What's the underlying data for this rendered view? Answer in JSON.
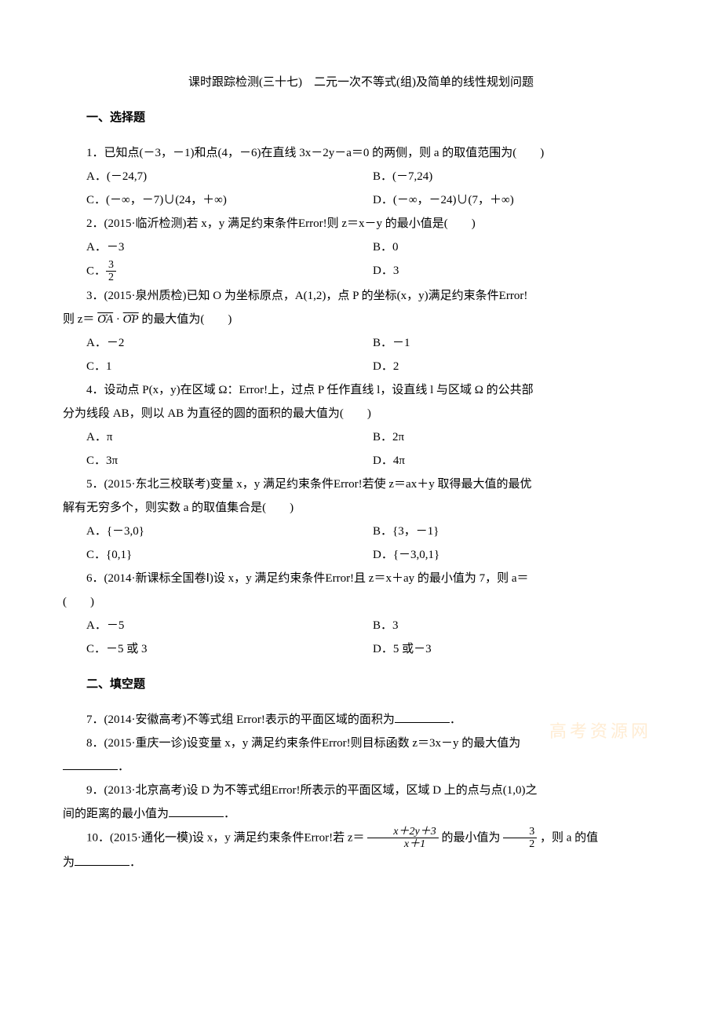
{
  "title": "课时跟踪检测(三十七)　二元一次不等式(组)及简单的线性规划问题",
  "sec1": "一、选择题",
  "q1": "1．已知点(－3，－1)和点(4，－6)在直线 3x－2y－a＝0 的两侧，则 a 的取值范围为(　　)",
  "q1a": "A．(－24,7)",
  "q1b": "B．(－7,24)",
  "q1c": "C．(－∞，－7)∪(24，＋∞)",
  "q1d": "D．(－∞，－24)∪(7，＋∞)",
  "q2": "2．(2015·临沂检测)若 x，y 满足约束条件Error!则 z＝x－y 的最小值是(　　)",
  "q2a": "A．－3",
  "q2b": "B．0",
  "q2cPre": "C．",
  "q2cNum": "3",
  "q2cDen": "2",
  "q2d": "D．3",
  "q3p1": "3．(2015·泉州质检)已知 O 为坐标原点，A(1,2)，点 P 的坐标(x，y)满足约束条件Error!",
  "q3p2_a": "则 z＝",
  "q3p2_b": " 的最大值为(　　)",
  "q3oa": "OA",
  "q3op": "OP",
  "q3a": "A．－2",
  "q3b": "B．－1",
  "q3c": "C．1",
  "q3d": "D．2",
  "q4p1": "4．设动点 P(x，y)在区域 Ω：Error!上，过点 P 任作直线 l，设直线 l 与区域 Ω 的公共部",
  "q4p2": "分为线段 AB，则以 AB 为直径的圆的面积的最大值为(　　)",
  "q4a": "A．π",
  "q4b": "B．2π",
  "q4c": "C．3π",
  "q4d": "D．4π",
  "q5p1": "5．(2015·东北三校联考)变量 x，y 满足约束条件Error!若使 z＝ax＋y 取得最大值的最优",
  "q5p2": "解有无穷多个，则实数 a 的取值集合是(　　)",
  "q5a": "A．{－3,0}",
  "q5b": "B．{3，－1}",
  "q5c": "C．{0,1}",
  "q5d": "D．{－3,0,1}",
  "q6p1": "6．(2014·新课标全国卷Ⅰ)设 x，y 满足约束条件Error!且 z＝x＋ay 的最小值为 7，则 a＝",
  "q6p2": "(　　)",
  "q6a": "A．－5",
  "q6b": "B．3",
  "q6c": "C．－5 或 3",
  "q6d": "D．5 或－3",
  "sec2": "二、填空题",
  "q7a": "7．(2014·安徽高考)不等式组 Error!表示的平面区域的面积为",
  "q7b": "．",
  "q8a": "8．(2015·重庆一诊)设变量 x，y 满足约束条件Error!则目标函数 z＝3x－y 的最大值为",
  "q8b": "．",
  "q9p1": "9．(2013·北京高考)设 D 为不等式组Error!所表示的平面区域，区域 D 上的点与点(1,0)之",
  "q9p2a": "间的距离的最小值为",
  "q9p2b": "．",
  "q10a": "10．(2015·通化一模)设 x，y 满足约束条件Error!若 z＝",
  "q10num": "x＋2y＋3",
  "q10den": "x＋1",
  "q10b": "的最小值为",
  "q10n2": "3",
  "q10d2": "2",
  "q10c": "，则 a 的值",
  "q10p2a": "为",
  "q10p2b": "．",
  "watermark": "高考资源网"
}
